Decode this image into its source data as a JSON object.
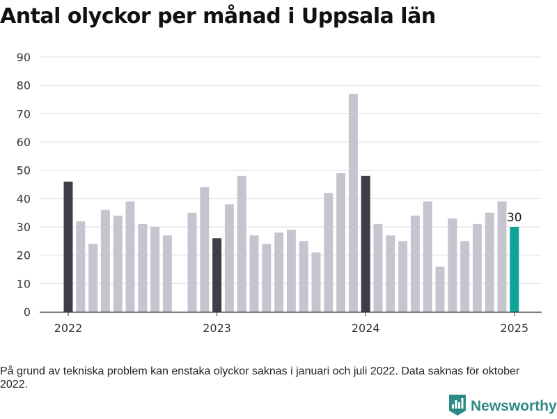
{
  "title": "Antal olyckor per månad i Uppsala län",
  "footnote": "På grund av tekniska problem kan enstaka olyckor saknas i januari och juli 2022. Data saknas för oktober 2022.",
  "brand": {
    "name": "Newsworthy",
    "icon": "newsworthy-logo-icon",
    "color": "#2e8a86"
  },
  "colors": {
    "bar": "#c6c5cf",
    "january": "#3e3d4a",
    "latest": "#10a39a",
    "grid": "#dddddd",
    "axis": "#333333"
  },
  "chart_data": {
    "type": "bar",
    "title": "Antal olyckor per månad i Uppsala län",
    "xlabel": "",
    "ylabel": "",
    "ylim": [
      0,
      90
    ],
    "yticks": [
      0,
      10,
      20,
      30,
      40,
      50,
      60,
      70,
      80,
      90
    ],
    "xtick_labels": [
      "2022",
      "2023",
      "2024",
      "2025"
    ],
    "grid": true,
    "categories": [
      "2022-01",
      "2022-02",
      "2022-03",
      "2022-04",
      "2022-05",
      "2022-06",
      "2022-07",
      "2022-08",
      "2022-09",
      "2022-10",
      "2022-11",
      "2022-12",
      "2023-01",
      "2023-02",
      "2023-03",
      "2023-04",
      "2023-05",
      "2023-06",
      "2023-07",
      "2023-08",
      "2023-09",
      "2023-10",
      "2023-11",
      "2023-12",
      "2024-01",
      "2024-02",
      "2024-03",
      "2024-04",
      "2024-05",
      "2024-06",
      "2024-07",
      "2024-08",
      "2024-09",
      "2024-10",
      "2024-11",
      "2024-12",
      "2025-01"
    ],
    "values": [
      46,
      32,
      24,
      36,
      34,
      39,
      31,
      30,
      27,
      null,
      35,
      44,
      26,
      38,
      48,
      27,
      24,
      28,
      29,
      25,
      21,
      42,
      49,
      77,
      48,
      31,
      27,
      25,
      34,
      39,
      16,
      33,
      25,
      31,
      35,
      39,
      30
    ],
    "annotations": [
      {
        "x": "2025-01",
        "text": "30"
      }
    ]
  }
}
